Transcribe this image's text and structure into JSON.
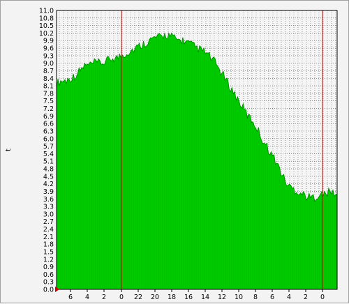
{
  "chart_data": {
    "type": "area",
    "title": "",
    "ylabel": "t",
    "xlabel": "",
    "ylim": [
      0.0,
      11.0
    ],
    "y_ticks": [
      "0.0",
      "0.3",
      "0.6",
      "0.9",
      "1.2",
      "1.5",
      "1.8",
      "2.1",
      "2.4",
      "2.7",
      "3.0",
      "3.3",
      "3.6",
      "3.9",
      "4.2",
      "4.5",
      "4.8",
      "5.1",
      "5.4",
      "5.7",
      "6.0",
      "6.3",
      "6.6",
      "6.9",
      "7.2",
      "7.5",
      "7.8",
      "8.1",
      "8.4",
      "8.7",
      "9.0",
      "9.3",
      "9.6",
      "9.9",
      "10.2",
      "10.5",
      "10.8",
      "11.0"
    ],
    "x_ticks": [
      "6",
      "4",
      "2",
      "0",
      "22",
      "20",
      "18",
      "16",
      "14",
      "12",
      "10",
      "8",
      "6",
      "4",
      "2",
      "0"
    ],
    "grid": true,
    "fill_color": "#00cc00",
    "edge_color": "#007a00",
    "marker_color": "#d00000",
    "background": "#f5f5f5",
    "vertical_markers_at_tick": [
      "0",
      "0"
    ],
    "series": [
      {
        "values": [
          8.1,
          8.2,
          8.2,
          8.3,
          8.4,
          8.6,
          8.8,
          8.8,
          8.9,
          8.9,
          8.9,
          9.0,
          9.1,
          9.1,
          9.2,
          9.3,
          9.4,
          9.5,
          9.6,
          9.7,
          9.8,
          9.9,
          9.9,
          10.0,
          10.0,
          9.9,
          9.8,
          9.8,
          9.7,
          9.6,
          9.5,
          9.4,
          9.3,
          9.1,
          8.9,
          8.6,
          8.3,
          8.0,
          7.7,
          7.4,
          7.1,
          6.8,
          6.6,
          6.3,
          5.9,
          5.6,
          5.3,
          5.0,
          4.6,
          4.2,
          4.0,
          3.9,
          3.8,
          3.7,
          3.6,
          3.6,
          3.7,
          3.7,
          3.8,
          3.8,
          3.7
        ]
      }
    ]
  }
}
